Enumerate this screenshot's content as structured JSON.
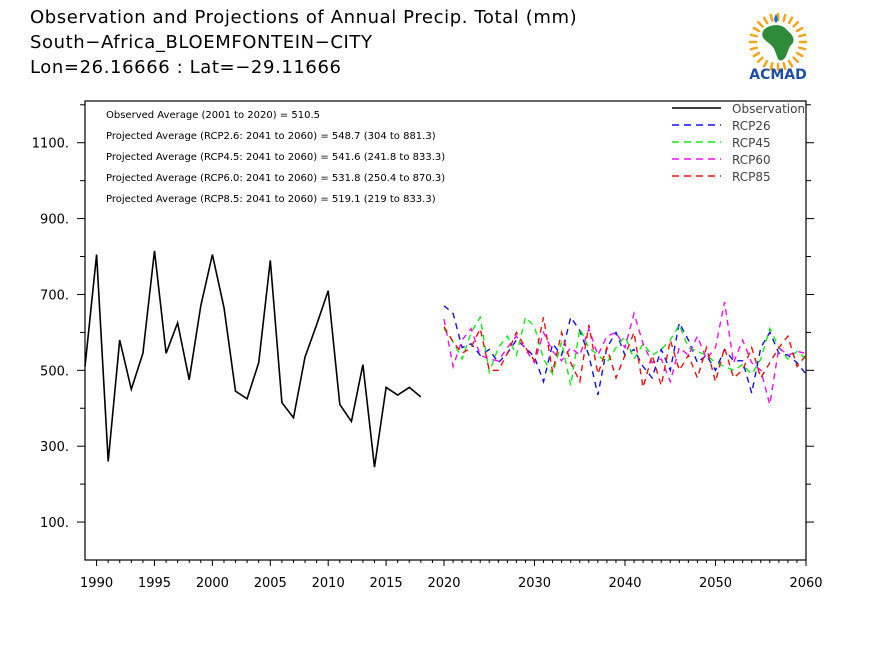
{
  "header": {
    "title": "Observation and Projections of Annual Precip. Total (mm)",
    "location": "South−Africa_BLOEMFONTEIN−CITY",
    "coords": "Lon=26.16666 : Lat=−29.11666",
    "logo_text": "ACMAD"
  },
  "colors": {
    "observation": "#000000",
    "RCP26": "#1010ee",
    "RCP45": "#10ee10",
    "RCP60": "#ee10ee",
    "RCP85": "#ee1010"
  },
  "chart_data": {
    "type": "line",
    "title": "Observation and Projections of Annual Precip. Total (mm)",
    "xlabel": "",
    "ylabel": "",
    "xlim": [
      1989,
      2060
    ],
    "ylim": [
      0,
      1210
    ],
    "y_ticks": [
      100,
      300,
      500,
      700,
      900,
      1100
    ],
    "y_tick_labels": [
      "100.",
      "300.",
      "500.",
      "700.",
      "900.",
      "1100."
    ],
    "x_ticks": [
      1990,
      1995,
      2000,
      2005,
      2010,
      2015,
      2020,
      2030,
      2040,
      2050,
      2060
    ],
    "x_tick_labels": [
      "1990",
      "1995",
      "2000",
      "2005",
      "2010",
      "2015",
      "2020",
      "2030",
      "2040",
      "2050",
      "2060"
    ],
    "x_break_year": 2020,
    "grid": false,
    "legend_position": "top-right",
    "annotations": [
      "Observed Average (2001 to 2020) = 510.5",
      "Projected Average (RCP2.6: 2041 to 2060) = 548.7 (304 to 881.3)",
      "Projected Average (RCP4.5: 2041 to 2060) = 541.6 (241.8 to 833.3)",
      "Projected Average (RCP6.0: 2041 to 2060) = 531.8 (250.4 to 870.3)",
      "Projected Average (RCP8.5: 2041 to 2060) = 519.1 (219 to 833.3)"
    ],
    "series": [
      {
        "name": "Observation",
        "style": "solid",
        "x": [
          1989,
          1990,
          1991,
          1992,
          1993,
          1994,
          1995,
          1996,
          1997,
          1998,
          1999,
          2000,
          2001,
          2002,
          2003,
          2004,
          2005,
          2006,
          2007,
          2008,
          2009,
          2010,
          2011,
          2012,
          2013,
          2014,
          2015,
          2016,
          2017,
          2018,
          2019
        ],
        "values": [
          510,
          805,
          260,
          580,
          450,
          545,
          815,
          545,
          625,
          475,
          670,
          805,
          665,
          445,
          425,
          520,
          790,
          415,
          375,
          535,
          620,
          710,
          410,
          365,
          515,
          245,
          455,
          435,
          455,
          430,
          null
        ]
      },
      {
        "name": "RCP26",
        "style": "dashed",
        "x": [
          2020,
          2021,
          2022,
          2023,
          2024,
          2025,
          2026,
          2027,
          2028,
          2029,
          2030,
          2031,
          2032,
          2033,
          2034,
          2035,
          2036,
          2037,
          2038,
          2039,
          2040,
          2041,
          2042,
          2043,
          2044,
          2045,
          2046,
          2047,
          2048,
          2049,
          2050,
          2051,
          2052,
          2053,
          2054,
          2055,
          2056,
          2057,
          2058,
          2059,
          2060
        ],
        "values": [
          670,
          650,
          560,
          570,
          540,
          555,
          520,
          545,
          580,
          560,
          535,
          470,
          570,
          540,
          640,
          605,
          540,
          435,
          560,
          600,
          540,
          555,
          510,
          480,
          555,
          500,
          625,
          580,
          520,
          540,
          500,
          555,
          525,
          525,
          440,
          560,
          600,
          545,
          540,
          520,
          490
        ]
      },
      {
        "name": "RCP45",
        "style": "dashed",
        "x": [
          2020,
          2021,
          2022,
          2023,
          2024,
          2025,
          2026,
          2027,
          2028,
          2029,
          2030,
          2031,
          2032,
          2033,
          2034,
          2035,
          2036,
          2037,
          2038,
          2039,
          2040,
          2041,
          2042,
          2043,
          2044,
          2045,
          2046,
          2047,
          2048,
          2049,
          2050,
          2051,
          2052,
          2053,
          2054,
          2055,
          2056,
          2057,
          2058,
          2059,
          2060
        ],
        "values": [
          610,
          575,
          530,
          600,
          640,
          495,
          560,
          590,
          540,
          640,
          615,
          530,
          490,
          575,
          460,
          610,
          560,
          540,
          520,
          560,
          590,
          530,
          570,
          540,
          555,
          580,
          620,
          560,
          550,
          540,
          520,
          510,
          500,
          515,
          490,
          530,
          610,
          560,
          530,
          550,
          530
        ]
      },
      {
        "name": "RCP60",
        "style": "dashed",
        "x": [
          2020,
          2021,
          2022,
          2023,
          2024,
          2025,
          2026,
          2027,
          2028,
          2029,
          2030,
          2031,
          2032,
          2033,
          2034,
          2035,
          2036,
          2037,
          2038,
          2039,
          2040,
          2041,
          2042,
          2043,
          2044,
          2045,
          2046,
          2047,
          2048,
          2049,
          2050,
          2051,
          2052,
          2053,
          2054,
          2055,
          2056,
          2057,
          2058,
          2059,
          2060
        ],
        "values": [
          635,
          510,
          580,
          610,
          540,
          530,
          525,
          560,
          590,
          555,
          520,
          600,
          550,
          525,
          560,
          540,
          610,
          540,
          590,
          600,
          560,
          650,
          570,
          520,
          530,
          470,
          560,
          540,
          590,
          530,
          560,
          680,
          520,
          580,
          520,
          500,
          410,
          560,
          540,
          550,
          545
        ]
      },
      {
        "name": "RCP85",
        "style": "dashed",
        "x": [
          2020,
          2021,
          2022,
          2023,
          2024,
          2025,
          2026,
          2027,
          2028,
          2029,
          2030,
          2031,
          2032,
          2033,
          2034,
          2035,
          2036,
          2037,
          2038,
          2039,
          2040,
          2041,
          2042,
          2043,
          2044,
          2045,
          2046,
          2047,
          2048,
          2049,
          2050,
          2051,
          2052,
          2053,
          2054,
          2055,
          2056,
          2057,
          2058,
          2059,
          2060
        ],
        "values": [
          615,
          575,
          545,
          560,
          610,
          500,
          500,
          545,
          600,
          560,
          525,
          640,
          495,
          600,
          520,
          470,
          620,
          490,
          560,
          480,
          540,
          600,
          455,
          540,
          460,
          580,
          500,
          540,
          480,
          560,
          470,
          560,
          480,
          500,
          560,
          480,
          520,
          560,
          590,
          510,
          540
        ]
      }
    ]
  }
}
